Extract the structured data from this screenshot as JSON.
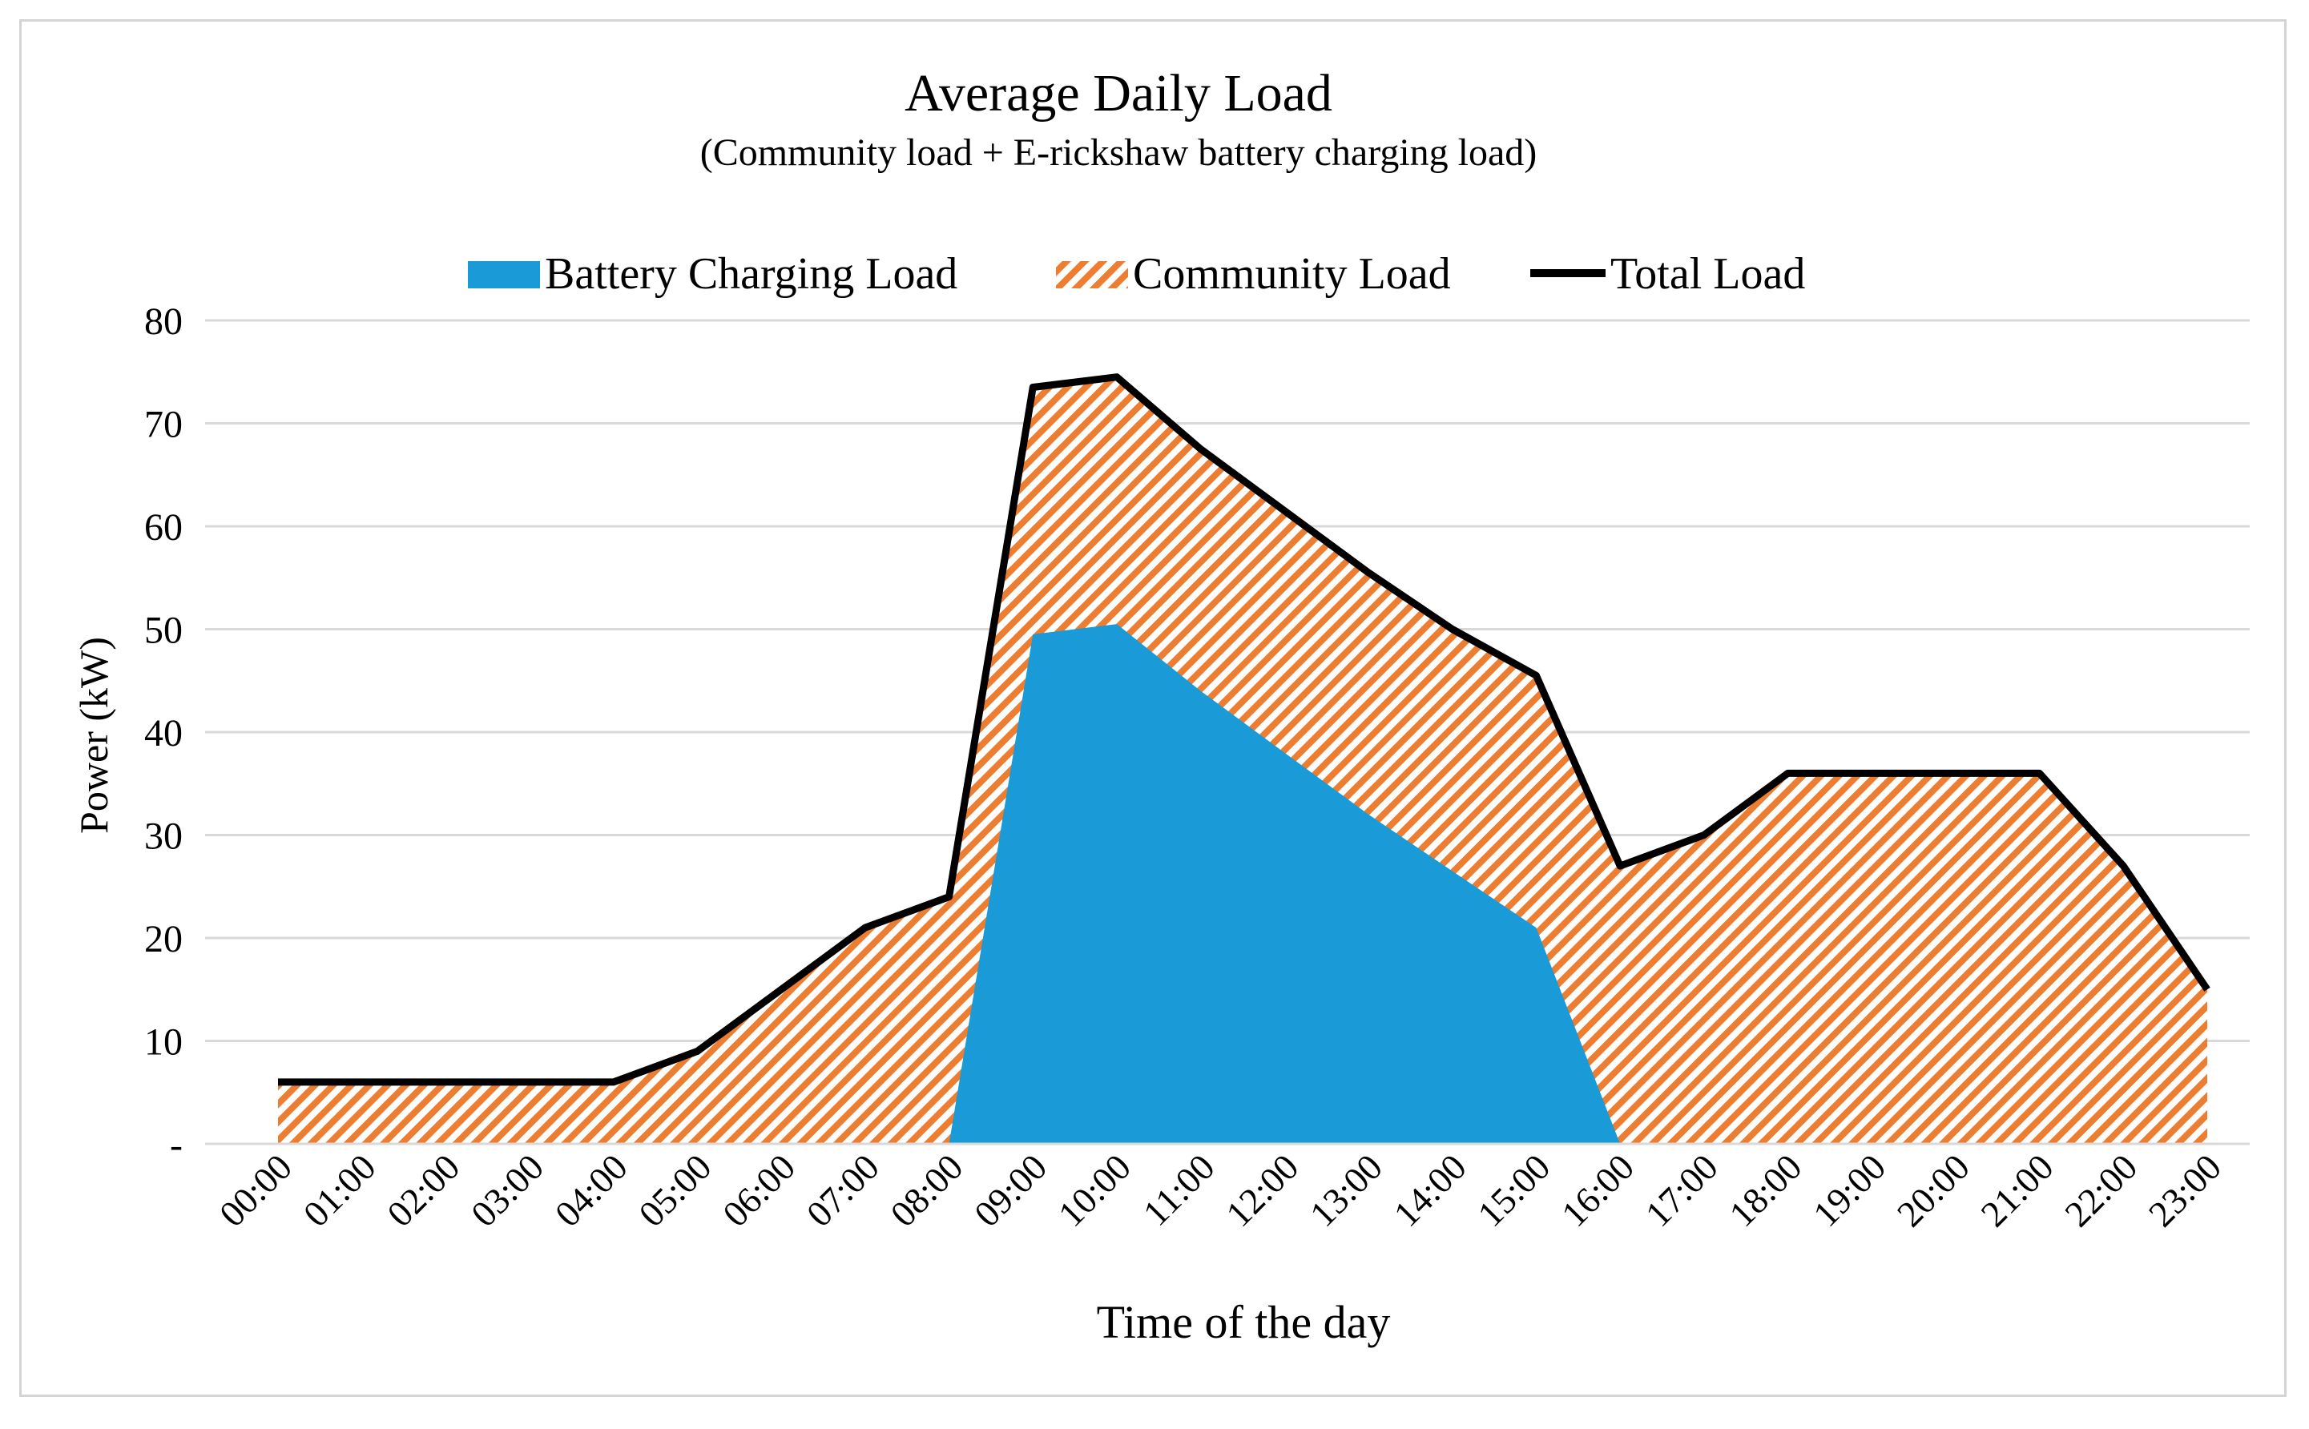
{
  "chart_data": {
    "type": "area",
    "title": "Average Daily Load",
    "subtitle": "(Community load  + E-rickshaw battery charging load)",
    "xlabel": "Time of the day",
    "ylabel": "Power (kW)",
    "ylim": [
      0,
      80
    ],
    "yticks": [
      {
        "value": 0,
        "label": "-"
      },
      {
        "value": 10,
        "label": "10"
      },
      {
        "value": 20,
        "label": "20"
      },
      {
        "value": 30,
        "label": "30"
      },
      {
        "value": 40,
        "label": "40"
      },
      {
        "value": 50,
        "label": "50"
      },
      {
        "value": 60,
        "label": "60"
      },
      {
        "value": 70,
        "label": "70"
      },
      {
        "value": 80,
        "label": "80"
      }
    ],
    "grid": true,
    "legend_position": "top",
    "categories": [
      "00:00",
      "01:00",
      "02:00",
      "03:00",
      "04:00",
      "05:00",
      "06:00",
      "07:00",
      "08:00",
      "09:00",
      "10:00",
      "11:00",
      "12:00",
      "13:00",
      "14:00",
      "15:00",
      "16:00",
      "17:00",
      "18:00",
      "19:00",
      "20:00",
      "21:00",
      "22:00",
      "23:00"
    ],
    "series": [
      {
        "name": "Battery Charging Load",
        "style": "solid-area",
        "color": "#1a9ad6",
        "values": [
          0,
          0,
          0,
          0,
          0,
          0,
          0,
          0,
          0,
          49.5,
          50.5,
          44,
          38,
          32,
          26.5,
          21,
          0,
          0,
          0,
          0,
          0,
          0,
          0,
          0
        ]
      },
      {
        "name": "Community Load",
        "style": "hatched-area",
        "color": "#ed7d31",
        "values": [
          6,
          6,
          6,
          6,
          6,
          9,
          15,
          21,
          24,
          24,
          24,
          23.5,
          23.5,
          23.5,
          23.5,
          24.5,
          27,
          30,
          36,
          36,
          36,
          36,
          27,
          15
        ]
      },
      {
        "name": "Total Load",
        "style": "line",
        "color": "#000000",
        "values": [
          6,
          6,
          6,
          6,
          6,
          9,
          15,
          21,
          24,
          73.5,
          74.5,
          67.5,
          61.5,
          55.5,
          50,
          45.5,
          27,
          30,
          36,
          36,
          36,
          36,
          27,
          15
        ]
      }
    ]
  }
}
